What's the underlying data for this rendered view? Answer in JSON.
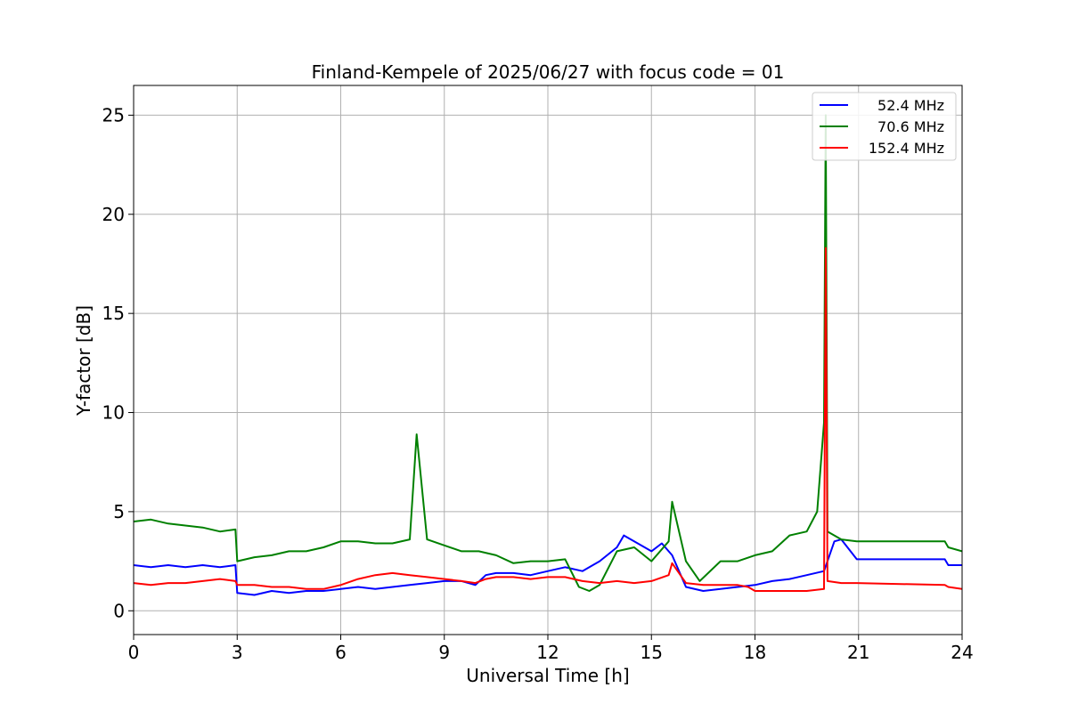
{
  "chart_data": {
    "type": "line",
    "title": "Finland-Kempele of 2025/06/27 with focus code = 01",
    "xlabel": "Universal Time [h]",
    "ylabel": "Y-factor [dB]",
    "xlim": [
      0,
      24
    ],
    "ylim": [
      -1.2,
      26.5
    ],
    "xticks": [
      0,
      3,
      6,
      9,
      12,
      15,
      18,
      21,
      24
    ],
    "xtick_labels": [
      "0",
      "3",
      "6",
      "9",
      "12",
      "15",
      "18",
      "21",
      "24"
    ],
    "yticks": [
      0,
      5,
      10,
      15,
      20,
      25
    ],
    "ytick_labels": [
      "0",
      "5",
      "10",
      "15",
      "20",
      "25"
    ],
    "grid": true,
    "legend_position": "top-right",
    "series": [
      {
        "name": "52.4 MHz",
        "color": "#0000ff",
        "x": [
          0,
          0.5,
          1,
          1.5,
          2,
          2.5,
          2.95,
          3.0,
          3.5,
          4,
          4.5,
          5,
          5.5,
          6,
          6.5,
          7,
          7.5,
          8,
          8.5,
          9,
          9.5,
          9.9,
          10.2,
          10.5,
          11,
          11.5,
          12,
          12.5,
          13,
          13.5,
          14,
          14.2,
          14.5,
          15,
          15.3,
          15.6,
          16,
          16.5,
          17,
          17.5,
          18,
          18.5,
          19,
          19.5,
          20,
          20.3,
          20.5,
          20.95,
          23.5,
          23.6,
          24
        ],
        "y": [
          2.3,
          2.2,
          2.3,
          2.2,
          2.3,
          2.2,
          2.3,
          0.9,
          0.8,
          1.0,
          0.9,
          1.0,
          1.0,
          1.1,
          1.2,
          1.1,
          1.2,
          1.3,
          1.4,
          1.5,
          1.5,
          1.3,
          1.8,
          1.9,
          1.9,
          1.8,
          2.0,
          2.2,
          2.0,
          2.5,
          3.2,
          3.8,
          3.5,
          3.0,
          3.4,
          2.8,
          1.2,
          1.0,
          1.1,
          1.2,
          1.3,
          1.5,
          1.6,
          1.8,
          2.0,
          3.5,
          3.6,
          2.6,
          2.6,
          2.3,
          2.3
        ]
      },
      {
        "name": "70.6 MHz",
        "color": "#008000",
        "x": [
          0,
          0.5,
          1,
          1.5,
          2,
          2.5,
          2.95,
          3.0,
          3.5,
          4,
          4.5,
          5,
          5.5,
          6,
          6.5,
          7,
          7.5,
          8,
          8.2,
          8.5,
          9,
          9.5,
          10,
          10.5,
          11,
          11.5,
          12,
          12.5,
          12.9,
          13.2,
          13.5,
          14,
          14.5,
          15,
          15.5,
          15.6,
          16,
          16.4,
          17,
          17.5,
          18,
          18.5,
          19,
          19.5,
          19.8,
          20.0,
          20.05,
          20.1,
          20.5,
          20.95,
          23.5,
          23.6,
          24
        ],
        "y": [
          4.5,
          4.6,
          4.4,
          4.3,
          4.2,
          4.0,
          4.1,
          2.5,
          2.7,
          2.8,
          3.0,
          3.0,
          3.2,
          3.5,
          3.5,
          3.4,
          3.4,
          3.6,
          8.9,
          3.6,
          3.3,
          3.0,
          3.0,
          2.8,
          2.4,
          2.5,
          2.5,
          2.6,
          1.2,
          1.0,
          1.3,
          3.0,
          3.2,
          2.5,
          3.5,
          5.5,
          2.5,
          1.5,
          2.5,
          2.5,
          2.8,
          3.0,
          3.8,
          4.0,
          5.0,
          9.5,
          25.0,
          4.0,
          3.6,
          3.5,
          3.5,
          3.2,
          3.0
        ]
      },
      {
        "name": "152.4 MHz",
        "color": "#ff0000",
        "x": [
          0,
          0.5,
          1,
          1.5,
          2,
          2.5,
          2.95,
          3.0,
          3.5,
          4,
          4.5,
          5,
          5.5,
          6,
          6.5,
          7,
          7.5,
          8,
          8.5,
          9,
          9.5,
          9.9,
          10.2,
          10.5,
          11,
          11.5,
          12,
          12.5,
          13,
          13.5,
          14,
          14.5,
          15,
          15.5,
          15.6,
          16,
          16.5,
          17,
          17.5,
          17.8,
          18,
          18.5,
          19,
          19.5,
          20,
          20.05,
          20.1,
          20.5,
          20.95,
          23.5,
          23.6,
          24
        ],
        "y": [
          1.4,
          1.3,
          1.4,
          1.4,
          1.5,
          1.6,
          1.5,
          1.3,
          1.3,
          1.2,
          1.2,
          1.1,
          1.1,
          1.3,
          1.6,
          1.8,
          1.9,
          1.8,
          1.7,
          1.6,
          1.5,
          1.4,
          1.6,
          1.7,
          1.7,
          1.6,
          1.7,
          1.7,
          1.5,
          1.4,
          1.5,
          1.4,
          1.5,
          1.8,
          2.4,
          1.4,
          1.3,
          1.3,
          1.3,
          1.2,
          1.0,
          1.0,
          1.0,
          1.0,
          1.1,
          18.3,
          1.5,
          1.4,
          1.4,
          1.3,
          1.2,
          1.1
        ]
      }
    ]
  }
}
